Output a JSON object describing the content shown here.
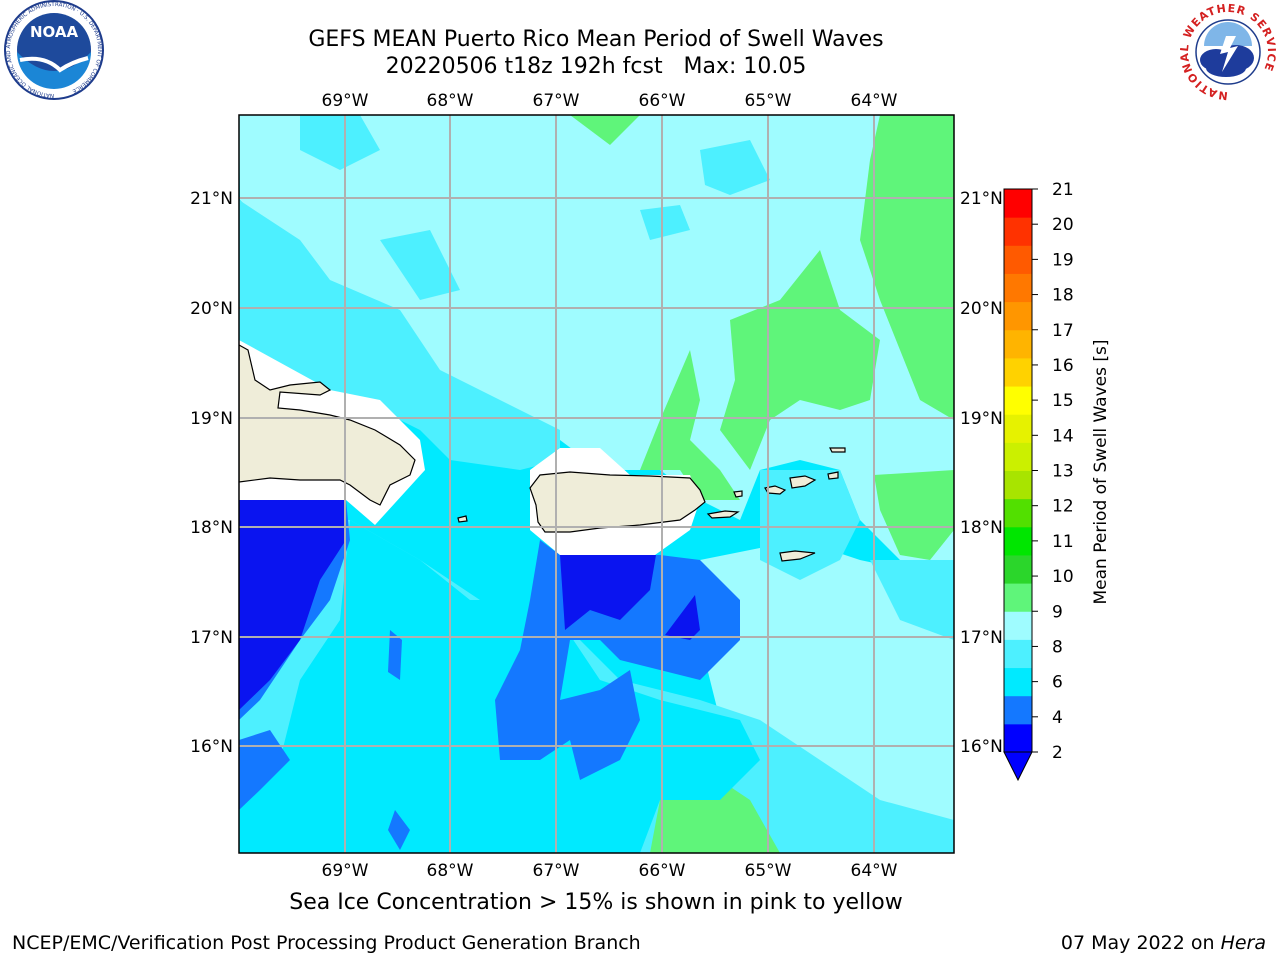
{
  "header": {
    "title_line1": "GEFS MEAN Puerto Rico Mean Period of Swell Waves",
    "title_line2": "20220506 t18z 192h fcst   Max: 10.05"
  },
  "map": {
    "lon_labels": [
      "69°W",
      "68°W",
      "67°W",
      "66°W",
      "65°W",
      "64°W"
    ],
    "lat_labels": [
      "21°N",
      "20°N",
      "19°N",
      "18°N",
      "17°N",
      "16°N"
    ],
    "colors": {
      "ocean_dark": "#0a14f0",
      "ocean_blue": "#1478ff",
      "cyan": "#00eaff",
      "light_cyan": "#4df0ff",
      "pale_cyan": "#9ffcff",
      "green": "#5ff57a",
      "land": "#efedd9",
      "grid": "#b0b0b0"
    }
  },
  "colorbar": {
    "label": "Mean Period of Swell Waves [s]",
    "tick_labels": [
      "21",
      "20",
      "19",
      "18",
      "17",
      "16",
      "15",
      "14",
      "13",
      "12",
      "11",
      "10",
      "9",
      "8",
      "6",
      "4",
      "2"
    ],
    "colors": [
      "#0000ff",
      "#1478ff",
      "#00eaff",
      "#4df0ff",
      "#9ffcff",
      "#5ff57a",
      "#2bd62b",
      "#00e600",
      "#52e000",
      "#a8e400",
      "#cbf000",
      "#e6f200",
      "#ffff00",
      "#ffd200",
      "#ffb400",
      "#ff9600",
      "#ff7800",
      "#ff5a00",
      "#ff3200",
      "#ff0000"
    ]
  },
  "subtitle": "Sea Ice Concentration > 15% is shown in pink to yellow",
  "footer": {
    "left": "NCEP/EMC/Verification Post Processing Product Generation Branch",
    "date": "07 May 2022 on ",
    "machine": "Hera"
  },
  "logos": {
    "noaa_text": "NOAA",
    "noaa_ring": "NATIONAL OCEANIC AND ATMOSPHERIC ADMINISTRATION · U.S. DEPARTMENT OF COMMERCE",
    "nws_ring": "NATIONAL WEATHER SERVICE"
  }
}
